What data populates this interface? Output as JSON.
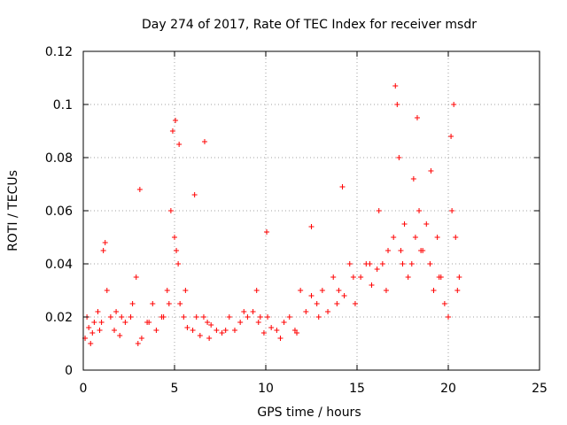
{
  "chart_data": {
    "type": "scatter",
    "title": "Day 274 of 2017, Rate Of TEC Index for receiver msdr",
    "xlabel": "GPS time / hours",
    "ylabel": "ROTI / TECUs",
    "xlim": [
      0,
      25
    ],
    "ylim": [
      0,
      0.12
    ],
    "xticks": [
      "0",
      "5",
      "10",
      "15",
      "20",
      "25"
    ],
    "yticks": [
      "0",
      "0.02",
      "0.04",
      "0.06",
      "0.08",
      "0.1",
      "0.12"
    ],
    "grid": true,
    "marker": "plus",
    "color": "#ff0000",
    "x": [
      0.1,
      0.3,
      0.5,
      0.8,
      1.0,
      1.1,
      1.3,
      1.5,
      1.7,
      2.0,
      2.3,
      2.6,
      2.9,
      3.0,
      3.2,
      3.5,
      3.8,
      4.0,
      4.3,
      4.6,
      4.8,
      4.9,
      5.0,
      5.1,
      5.2,
      5.3,
      5.5,
      5.7,
      6.0,
      6.2,
      6.4,
      6.6,
      6.8,
      7.0,
      7.3,
      7.6,
      8.0,
      8.3,
      8.6,
      9.0,
      9.3,
      9.6,
      9.9,
      10.1,
      10.3,
      10.6,
      11.0,
      11.3,
      11.6,
      11.9,
      12.2,
      12.5,
      12.8,
      13.1,
      13.4,
      13.7,
      14.0,
      14.3,
      14.6,
      14.9,
      15.2,
      15.5,
      15.8,
      16.1,
      16.4,
      16.7,
      17.0,
      17.2,
      17.4,
      17.6,
      17.8,
      18.0,
      18.2,
      18.4,
      18.6,
      18.8,
      19.0,
      19.2,
      19.4,
      19.6,
      19.8,
      20.0,
      20.2,
      20.4,
      20.6,
      0.2,
      0.6,
      1.2,
      2.1,
      3.1,
      4.7,
      5.05,
      5.25,
      6.1,
      6.65,
      9.5,
      10.05,
      12.5,
      14.2,
      16.2,
      17.1,
      17.3,
      18.1,
      18.3,
      19.05,
      20.15,
      20.3,
      0.4,
      0.9,
      1.8,
      2.7,
      3.6,
      4.4,
      5.6,
      6.9,
      7.8,
      8.8,
      9.7,
      10.8,
      11.7,
      12.9,
      13.9,
      14.8,
      15.7,
      16.6,
      17.5,
      18.5,
      19.5,
      20.5
    ],
    "y": [
      0.012,
      0.016,
      0.014,
      0.022,
      0.018,
      0.045,
      0.03,
      0.02,
      0.015,
      0.013,
      0.018,
      0.02,
      0.035,
      0.01,
      0.012,
      0.018,
      0.025,
      0.015,
      0.02,
      0.03,
      0.06,
      0.09,
      0.05,
      0.045,
      0.04,
      0.025,
      0.02,
      0.016,
      0.015,
      0.02,
      0.013,
      0.02,
      0.018,
      0.017,
      0.015,
      0.014,
      0.02,
      0.015,
      0.018,
      0.02,
      0.022,
      0.018,
      0.014,
      0.02,
      0.016,
      0.015,
      0.018,
      0.02,
      0.015,
      0.03,
      0.022,
      0.028,
      0.025,
      0.03,
      0.022,
      0.035,
      0.03,
      0.028,
      0.04,
      0.025,
      0.035,
      0.04,
      0.032,
      0.038,
      0.04,
      0.045,
      0.05,
      0.1,
      0.045,
      0.055,
      0.035,
      0.04,
      0.05,
      0.06,
      0.045,
      0.055,
      0.04,
      0.03,
      0.05,
      0.035,
      0.025,
      0.02,
      0.06,
      0.05,
      0.035,
      0.02,
      0.018,
      0.048,
      0.02,
      0.068,
      0.025,
      0.094,
      0.085,
      0.066,
      0.086,
      0.03,
      0.052,
      0.054,
      0.069,
      0.06,
      0.107,
      0.08,
      0.072,
      0.095,
      0.075,
      0.088,
      0.1,
      0.01,
      0.015,
      0.022,
      0.025,
      0.018,
      0.02,
      0.03,
      0.012,
      0.015,
      0.022,
      0.02,
      0.012,
      0.014,
      0.02,
      0.025,
      0.035,
      0.04,
      0.03,
      0.04,
      0.045,
      0.035,
      0.03
    ]
  }
}
